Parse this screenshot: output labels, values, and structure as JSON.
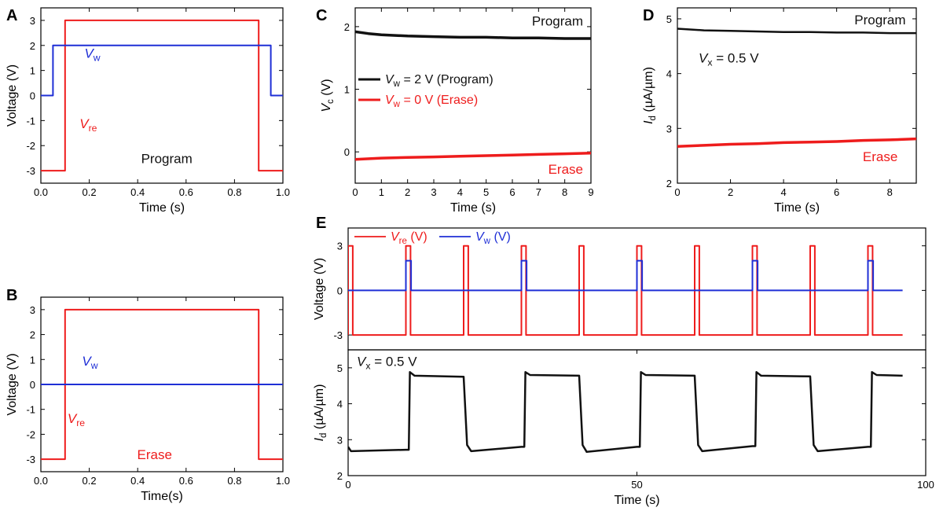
{
  "colors": {
    "red": "#ee1c1c",
    "blue": "#1f2fd6",
    "black": "#111111"
  },
  "chart_data": [
    {
      "id": "A",
      "type": "line",
      "panel_label": "A",
      "xlabel": "Time (s)",
      "ylabel": "Voltage (V)",
      "xlim": [
        0,
        1
      ],
      "ylim": [
        -3.5,
        3.5
      ],
      "xticks": [
        0,
        0.2,
        0.4,
        0.6,
        0.8,
        1.0
      ],
      "xtick_labels": [
        "0.0",
        "0.2",
        "0.4",
        "0.6",
        "0.8",
        "1.0"
      ],
      "yticks": [
        -3,
        -2,
        -1,
        0,
        1,
        2,
        3
      ],
      "ytick_labels": [
        "-3",
        "-2",
        "-1",
        "0",
        "1",
        "2",
        "3"
      ],
      "series": [
        {
          "name": "V_re",
          "color": "#ee1c1c",
          "x": [
            0,
            0.1,
            0.1,
            0.9,
            0.9,
            1.0
          ],
          "y": [
            -3,
            -3,
            3,
            3,
            -3,
            -3
          ]
        },
        {
          "name": "V_w",
          "color": "#1f2fd6",
          "x": [
            0,
            0.05,
            0.05,
            0.95,
            0.95,
            1.0
          ],
          "y": [
            0,
            0,
            2,
            2,
            0,
            0
          ]
        }
      ],
      "annotations": [
        {
          "text": "V",
          "sub": "w",
          "x": 0.18,
          "y": 1.5,
          "color": "#1f2fd6",
          "italic": true
        },
        {
          "text": "V",
          "sub": "re",
          "x": 0.16,
          "y": -1.3,
          "color": "#ee1c1c",
          "italic": true
        },
        {
          "text": "Program",
          "x": 0.52,
          "y": -2.7,
          "color": "#111111",
          "anchor": "middle"
        }
      ]
    },
    {
      "id": "B",
      "type": "line",
      "panel_label": "B",
      "xlabel": "Time(s)",
      "ylabel": "Voltage (V)",
      "xlim": [
        0,
        1
      ],
      "ylim": [
        -3.5,
        3.5
      ],
      "xticks": [
        0,
        0.2,
        0.4,
        0.6,
        0.8,
        1.0
      ],
      "xtick_labels": [
        "0.0",
        "0.2",
        "0.4",
        "0.6",
        "0.8",
        "1.0"
      ],
      "yticks": [
        -3,
        -2,
        -1,
        0,
        1,
        2,
        3
      ],
      "ytick_labels": [
        "-3",
        "-2",
        "-1",
        "0",
        "1",
        "2",
        "3"
      ],
      "series": [
        {
          "name": "V_re",
          "color": "#ee1c1c",
          "x": [
            0,
            0.1,
            0.1,
            0.9,
            0.9,
            1.0
          ],
          "y": [
            -3,
            -3,
            3,
            3,
            -3,
            -3
          ]
        },
        {
          "name": "V_w",
          "color": "#1f2fd6",
          "x": [
            0,
            1.0
          ],
          "y": [
            0,
            0
          ]
        }
      ],
      "annotations": [
        {
          "text": "V",
          "sub": "w",
          "x": 0.17,
          "y": 0.75,
          "color": "#1f2fd6",
          "italic": true
        },
        {
          "text": "V",
          "sub": "re",
          "x": 0.11,
          "y": -1.55,
          "color": "#ee1c1c",
          "italic": true
        },
        {
          "text": "Erase",
          "x": 0.47,
          "y": -3.0,
          "color": "#ee1c1c",
          "anchor": "middle"
        }
      ]
    },
    {
      "id": "C",
      "type": "line",
      "panel_label": "C",
      "xlabel": "Time (s)",
      "ylabel": "V",
      "ylabel_sub": "c",
      "ylabel_rest": " (V)",
      "xlim": [
        0,
        9
      ],
      "ylim": [
        -0.5,
        2.3
      ],
      "xticks": [
        0,
        1,
        2,
        3,
        4,
        5,
        6,
        7,
        8,
        9
      ],
      "xtick_labels": [
        "0",
        "1",
        "2",
        "3",
        "4",
        "5",
        "6",
        "7",
        "8",
        "9"
      ],
      "yticks": [
        0,
        1,
        2
      ],
      "ytick_labels": [
        "0",
        "1",
        "2"
      ],
      "series": [
        {
          "name": "Program",
          "color": "#111111",
          "width": 3.5,
          "x": [
            0,
            0.5,
            1,
            2,
            3,
            4,
            5,
            6,
            7,
            8,
            9
          ],
          "y": [
            1.92,
            1.89,
            1.87,
            1.85,
            1.84,
            1.83,
            1.83,
            1.82,
            1.82,
            1.81,
            1.81
          ]
        },
        {
          "name": "Erase",
          "color": "#ee1c1c",
          "width": 3.5,
          "x": [
            0,
            1,
            2,
            3,
            4,
            5,
            6,
            7,
            8,
            9
          ],
          "y": [
            -0.12,
            -0.1,
            -0.09,
            -0.08,
            -0.07,
            -0.06,
            -0.05,
            -0.04,
            -0.03,
            -0.02
          ]
        }
      ],
      "legend": {
        "position": "center-left",
        "entries": [
          {
            "pre": "V",
            "sub": "w",
            "post": " = 2 V (Program)",
            "color": "#111111"
          },
          {
            "pre": "V",
            "sub": "w",
            "post": " = 0 V (Erase)",
            "color": "#ee1c1c"
          }
        ]
      },
      "annotations": [
        {
          "text": "Program",
          "x": 8.7,
          "y": 2.02,
          "color": "#111111",
          "anchor": "end"
        },
        {
          "text": "Erase",
          "x": 8.7,
          "y": -0.35,
          "color": "#ee1c1c",
          "anchor": "end"
        }
      ]
    },
    {
      "id": "D",
      "type": "line",
      "panel_label": "D",
      "xlabel": "Time (s)",
      "ylabel": "I",
      "ylabel_sub": "d",
      "ylabel_rest": " (µA/µm)",
      "xlim": [
        0,
        9
      ],
      "ylim": [
        2,
        5.2
      ],
      "xticks": [
        0,
        2,
        4,
        6,
        8
      ],
      "xtick_labels": [
        "0",
        "2",
        "4",
        "6",
        "8"
      ],
      "yticks": [
        2,
        3,
        4,
        5
      ],
      "ytick_labels": [
        "2",
        "3",
        "4",
        "5"
      ],
      "series": [
        {
          "name": "Program",
          "color": "#111111",
          "width": 2.5,
          "x": [
            0,
            1,
            2,
            3,
            4,
            5,
            6,
            7,
            8,
            9
          ],
          "y": [
            4.82,
            4.79,
            4.78,
            4.77,
            4.76,
            4.76,
            4.75,
            4.75,
            4.74,
            4.74
          ]
        },
        {
          "name": "Erase",
          "color": "#ee1c1c",
          "width": 3.5,
          "x": [
            0,
            1,
            2,
            3,
            4,
            5,
            6,
            7,
            8,
            9
          ],
          "y": [
            2.67,
            2.69,
            2.71,
            2.72,
            2.74,
            2.75,
            2.76,
            2.78,
            2.79,
            2.81
          ]
        }
      ],
      "annotations": [
        {
          "text": "Program",
          "x": 8.6,
          "y": 4.9,
          "color": "#111111",
          "anchor": "end"
        },
        {
          "text": "V",
          "sub": "x",
          "post": " = 0.5 V",
          "x": 0.8,
          "y": 4.2,
          "color": "#111111",
          "italic": true
        },
        {
          "text": "Erase",
          "x": 8.3,
          "y": 2.4,
          "color": "#ee1c1c",
          "anchor": "end"
        }
      ]
    },
    {
      "id": "E-top",
      "type": "line",
      "panel_label": "E",
      "xlabel": "",
      "ylabel": "Voltage (V)",
      "xlim": [
        0,
        100
      ],
      "ylim": [
        -4,
        4.2
      ],
      "yticks": [
        -3,
        0,
        3
      ],
      "ytick_labels": [
        "-3",
        "0",
        "3"
      ],
      "series": [
        {
          "name": "V_re (V)",
          "color": "#ee1c1c",
          "pulses": {
            "start": 0,
            "period": 10,
            "count": 10,
            "width": 0.8,
            "low": -3,
            "high": 3
          },
          "x_end": 96
        },
        {
          "name": "V_w (V)",
          "color": "#1f2fd6",
          "pulses": {
            "start": 10,
            "period": 20,
            "count": 5,
            "width": 0.9,
            "low": 0,
            "high": 2
          },
          "x_end": 96
        }
      ],
      "legend": {
        "position": "top-left",
        "entries": [
          {
            "pre": "V",
            "sub": "re",
            "post": " (V)",
            "color": "#ee1c1c"
          },
          {
            "pre": "V",
            "sub": "w",
            "post": " (V)",
            "color": "#1f2fd6"
          }
        ]
      }
    },
    {
      "id": "E-bottom",
      "type": "line",
      "xlabel": "Time (s)",
      "ylabel": "I",
      "ylabel_sub": "d",
      "ylabel_rest": " (µA/µm)",
      "xlim": [
        0,
        100
      ],
      "ylim": [
        2,
        5.5
      ],
      "xticks": [
        0,
        50,
        100
      ],
      "xtick_labels": [
        "0",
        "50",
        "100"
      ],
      "yticks": [
        2,
        3,
        4,
        5
      ],
      "ytick_labels": [
        "2",
        "3",
        "4",
        "5"
      ],
      "series": [
        {
          "name": "I_d",
          "color": "#111111",
          "width": 2.5,
          "x": [
            0,
            0.5,
            10,
            10.5,
            10.7,
            11.5,
            20,
            20.6,
            21.3,
            30,
            30.5,
            30.7,
            31.5,
            40,
            40.6,
            41.3,
            50,
            50.5,
            50.7,
            51.5,
            60,
            60.6,
            61.3,
            70,
            70.5,
            70.7,
            71.5,
            80,
            80.6,
            81.3,
            90,
            90.5,
            90.7,
            91.5,
            96
          ],
          "y": [
            2.8,
            2.68,
            2.72,
            2.72,
            4.88,
            4.78,
            4.75,
            2.85,
            2.68,
            2.8,
            2.8,
            4.88,
            4.8,
            4.78,
            2.85,
            2.66,
            2.8,
            2.8,
            4.88,
            4.8,
            4.78,
            2.85,
            2.68,
            2.82,
            2.82,
            4.88,
            4.78,
            4.76,
            2.85,
            2.68,
            2.8,
            2.8,
            4.88,
            4.8,
            4.78
          ]
        }
      ],
      "annotations": [
        {
          "text": "V",
          "sub": "x",
          "post": " = 0.5 V",
          "x": 1.5,
          "y": 5.05,
          "color": "#111111",
          "italic": true
        }
      ]
    }
  ]
}
